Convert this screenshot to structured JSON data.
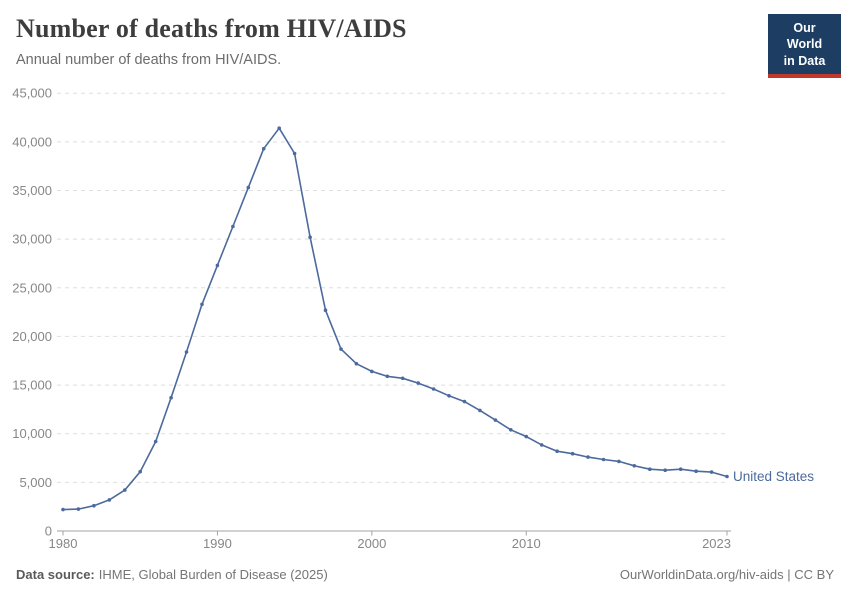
{
  "header": {
    "title": "Number of deaths from HIV/AIDS",
    "subtitle": "Annual number of deaths from HIV/AIDS.",
    "logo_line1": "Our World",
    "logo_line2": "in Data"
  },
  "chart_data": {
    "type": "line",
    "title": "Number of deaths from HIV/AIDS",
    "xlabel": "",
    "ylabel": "",
    "xlim": [
      1980,
      2023
    ],
    "ylim": [
      0,
      45000
    ],
    "x_ticks": [
      1980,
      1990,
      2000,
      2010,
      2023
    ],
    "y_ticks": [
      0,
      5000,
      10000,
      15000,
      20000,
      25000,
      30000,
      35000,
      40000,
      45000
    ],
    "grid": "dashed-horizontal",
    "legend_position": "end-of-line",
    "series": [
      {
        "name": "United States",
        "color": "#4C6A9C",
        "x": [
          1980,
          1981,
          1982,
          1983,
          1984,
          1985,
          1986,
          1987,
          1988,
          1989,
          1990,
          1991,
          1992,
          1993,
          1994,
          1995,
          1996,
          1997,
          1998,
          1999,
          2000,
          2001,
          2002,
          2003,
          2004,
          2005,
          2006,
          2007,
          2008,
          2009,
          2010,
          2011,
          2012,
          2013,
          2014,
          2015,
          2016,
          2017,
          2018,
          2019,
          2020,
          2021,
          2022,
          2023
        ],
        "y": [
          2200,
          2250,
          2600,
          3200,
          4200,
          6100,
          9200,
          13700,
          18400,
          23300,
          27300,
          31300,
          35300,
          39300,
          41400,
          38800,
          30200,
          22700,
          18700,
          17200,
          16400,
          15900,
          15700,
          15200,
          14600,
          13900,
          13300,
          12400,
          11400,
          10400,
          9700,
          8850,
          8200,
          7950,
          7600,
          7350,
          7150,
          6700,
          6350,
          6250,
          6350,
          6150,
          6050,
          5600
        ]
      }
    ],
    "end_label": "United States"
  },
  "footer": {
    "datasource_label": "Data source:",
    "datasource_value": "IHME, Global Burden of Disease (2025)",
    "url_license": "OurWorldinData.org/hiv-aids | CC BY"
  },
  "colors": {
    "line": "#4C6A9C",
    "title_text": "#3d3d3d",
    "subtitle_text": "#6c6c6c",
    "axis_label": "#878787",
    "gridline": "#dedede",
    "axis_line": "#a3a3a3",
    "logo_bg": "#1d3d63",
    "logo_accent": "#c0392b"
  }
}
